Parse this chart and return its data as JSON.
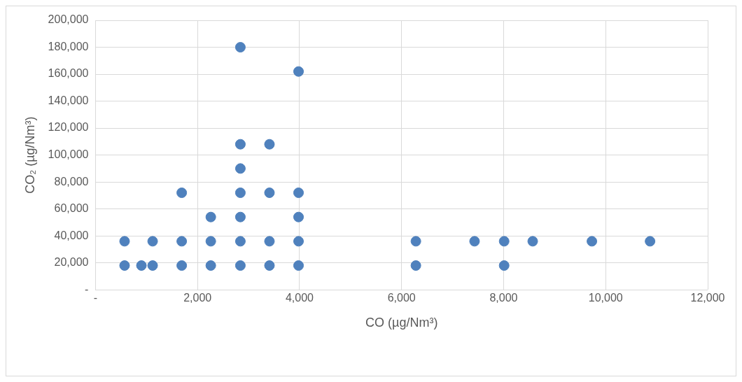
{
  "chart_data": {
    "type": "scatter",
    "xlabel": "CO (µg/Nm³)",
    "ylabel": "CO₂ (µg/Nm³)",
    "series": [
      {
        "color": "#4f81bd",
        "x": [
          570,
          900,
          1120,
          1690,
          2260,
          2840,
          3410,
          3980,
          6280,
          8010,
          570,
          1120,
          1690,
          2260,
          2840,
          3410,
          3980,
          6280,
          7430,
          8010,
          8570,
          9730,
          10870,
          2260,
          2840,
          3980,
          1690,
          2840,
          3410,
          3980,
          2840,
          2840,
          3410,
          3980,
          2840
        ],
        "values": [
          18000,
          18000,
          18000,
          18000,
          18000,
          18000,
          18000,
          18000,
          18000,
          18000,
          36000,
          36000,
          36000,
          36000,
          36000,
          36000,
          36000,
          36000,
          36000,
          36000,
          36000,
          36000,
          36000,
          54000,
          54000,
          54000,
          72000,
          72000,
          72000,
          72000,
          90000,
          108000,
          108000,
          162000,
          180000
        ]
      }
    ],
    "xlim": [
      0,
      12000
    ],
    "ylim": [
      0,
      200000
    ],
    "xticks": [
      {
        "value": 0,
        "label": "-"
      },
      {
        "value": 2000,
        "label": "2,000"
      },
      {
        "value": 4000,
        "label": "4,000"
      },
      {
        "value": 6000,
        "label": "6,000"
      },
      {
        "value": 8000,
        "label": "8,000"
      },
      {
        "value": 10000,
        "label": "10,000"
      },
      {
        "value": 12000,
        "label": "12,000"
      }
    ],
    "yticks": [
      {
        "value": 0,
        "label": "-"
      },
      {
        "value": 20000,
        "label": "20,000"
      },
      {
        "value": 40000,
        "label": "40,000"
      },
      {
        "value": 60000,
        "label": "60,000"
      },
      {
        "value": 80000,
        "label": "80,000"
      },
      {
        "value": 100000,
        "label": "100,000"
      },
      {
        "value": 120000,
        "label": "120,000"
      },
      {
        "value": 140000,
        "label": "140,000"
      },
      {
        "value": 160000,
        "label": "160,000"
      },
      {
        "value": 180000,
        "label": "180,000"
      },
      {
        "value": 200000,
        "label": "200,000"
      }
    ],
    "grid": true,
    "marker": "circle",
    "legend": false
  }
}
